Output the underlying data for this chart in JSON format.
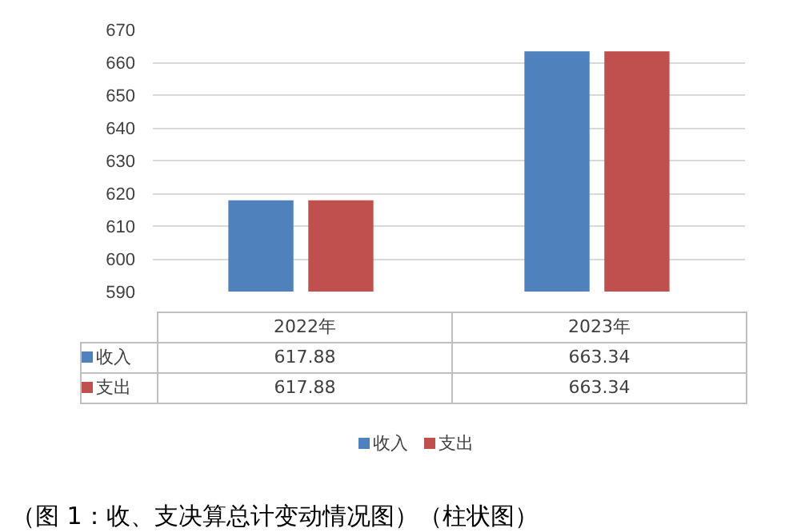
{
  "chart_data": {
    "type": "bar",
    "categories": [
      "2022年",
      "2023年"
    ],
    "series": [
      {
        "name": "收入",
        "color": "#4f81bd",
        "values": [
          617.88,
          663.34
        ]
      },
      {
        "name": "支出",
        "color": "#c0504d",
        "values": [
          617.88,
          663.34
        ]
      }
    ],
    "ylim": [
      590,
      670
    ],
    "yticks": [
      590,
      600,
      610,
      620,
      630,
      640,
      650,
      660,
      670
    ],
    "grid": "y",
    "legend": "bottom",
    "data_labels": true,
    "annotations": [
      "（图 1：收、支决算总计变动情况图）（柱状图）"
    ]
  }
}
